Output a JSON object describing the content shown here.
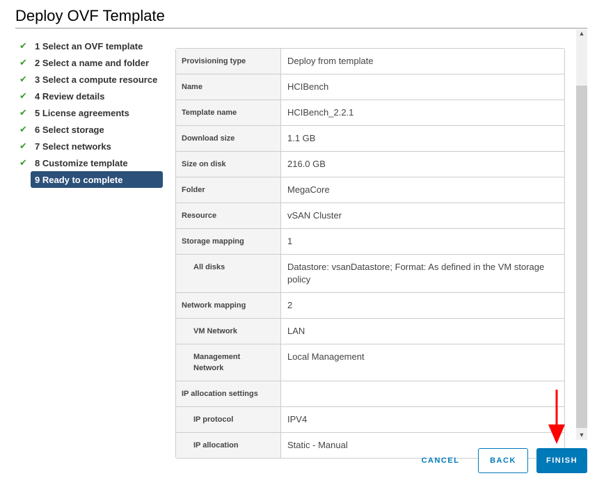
{
  "title": "Deploy OVF Template",
  "steps": [
    {
      "label": "1 Select an OVF template",
      "done": true
    },
    {
      "label": "2 Select a name and folder",
      "done": true
    },
    {
      "label": "3 Select a compute resource",
      "done": true
    },
    {
      "label": "4 Review details",
      "done": true
    },
    {
      "label": "5 License agreements",
      "done": true
    },
    {
      "label": "6 Select storage",
      "done": true
    },
    {
      "label": "7 Select networks",
      "done": true
    },
    {
      "label": "8 Customize template",
      "done": true
    },
    {
      "label": "9 Ready to complete",
      "done": false,
      "active": true
    }
  ],
  "rows": [
    {
      "label": "Provisioning type",
      "value": "Deploy from template"
    },
    {
      "label": "Name",
      "value": "HCIBench"
    },
    {
      "label": "Template name",
      "value": "HCIBench_2.2.1"
    },
    {
      "label": "Download size",
      "value": "1.1 GB"
    },
    {
      "label": "Size on disk",
      "value": "216.0 GB"
    },
    {
      "label": "Folder",
      "value": "MegaCore"
    },
    {
      "label": "Resource",
      "value": "vSAN Cluster"
    },
    {
      "label": "Storage mapping",
      "value": "1"
    },
    {
      "label": "All disks",
      "value": "Datastore: vsanDatastore; Format: As defined in the VM storage policy",
      "sub": true
    },
    {
      "label": "Network mapping",
      "value": "2"
    },
    {
      "label": "VM Network",
      "value": "LAN",
      "sub": true
    },
    {
      "label": "Management Network",
      "value": "Local Management",
      "sub": true
    },
    {
      "label": "IP allocation settings",
      "value": ""
    },
    {
      "label": "IP protocol",
      "value": "IPV4",
      "sub": true
    },
    {
      "label": "IP allocation",
      "value": "Static - Manual",
      "sub": true
    }
  ],
  "buttons": {
    "cancel": "CANCEL",
    "back": "BACK",
    "finish": "FINISH"
  },
  "colors": {
    "accent": "#0079b8",
    "active_step": "#2b5079",
    "check": "#3c9a2f",
    "annotation_arrow": "#ff0000"
  }
}
